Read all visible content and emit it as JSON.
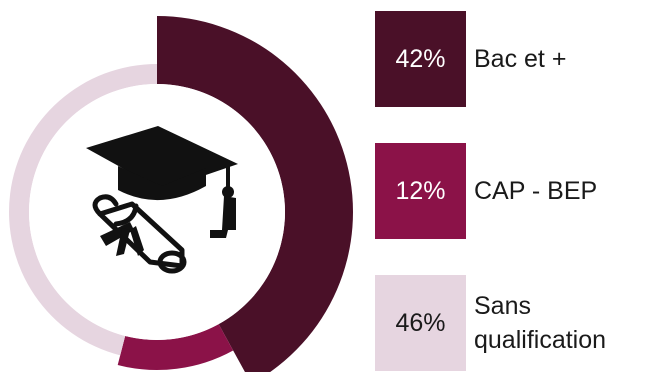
{
  "colors": {
    "bac": "#4a1028",
    "cap": "#8b1248",
    "sans": "#e6d5e0",
    "ink": "#1a1a1a"
  },
  "icon": "graduation-cap-diploma-icon",
  "legend": [
    {
      "value_text": "42%",
      "label": "Bac et +"
    },
    {
      "value_text": "12%",
      "label": "CAP - BEP"
    },
    {
      "value_text": "46%",
      "label_lines": [
        "Sans",
        "qualification"
      ]
    }
  ],
  "chart_data": {
    "type": "pie",
    "title": "",
    "slices": [
      {
        "label": "Bac et +",
        "value": 42,
        "color": "#4a1028"
      },
      {
        "label": "CAP - BEP",
        "value": 12,
        "color": "#8b1248"
      },
      {
        "label": "Sans qualification",
        "value": 46,
        "color": "#e6d5e0"
      }
    ],
    "legend": "right"
  }
}
